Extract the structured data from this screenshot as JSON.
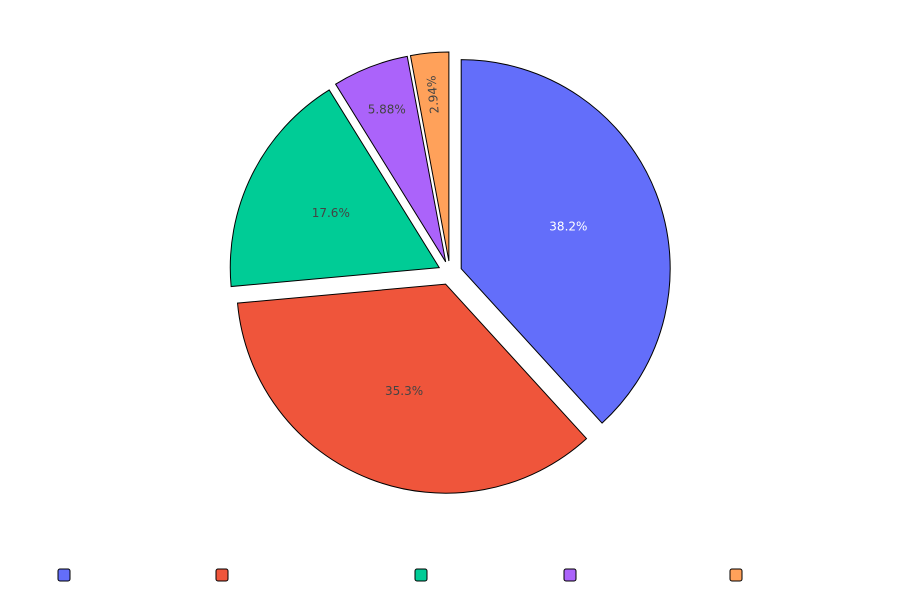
{
  "chart_data": {
    "type": "pie",
    "title": "",
    "values": [
      38.2,
      35.3,
      17.6,
      5.88,
      2.94
    ],
    "labels": [
      "38.2%",
      "35.3%",
      "17.6%",
      "5.88%",
      "2.94%"
    ],
    "colors": [
      "#636efa",
      "#ef553b",
      "#00cc96",
      "#ab63fa",
      "#ffa15a"
    ],
    "label_colors": [
      "#ffffff",
      "#444444",
      "#444444",
      "#444444",
      "#444444"
    ],
    "rotated_label_indices": [
      4
    ],
    "start": "12 o'clock",
    "direction": "clockwise",
    "exploded": true,
    "legend": {
      "placement": "bottom",
      "orientation": "horizontal",
      "entries": [
        "",
        "",
        "",
        "",
        ""
      ]
    }
  }
}
